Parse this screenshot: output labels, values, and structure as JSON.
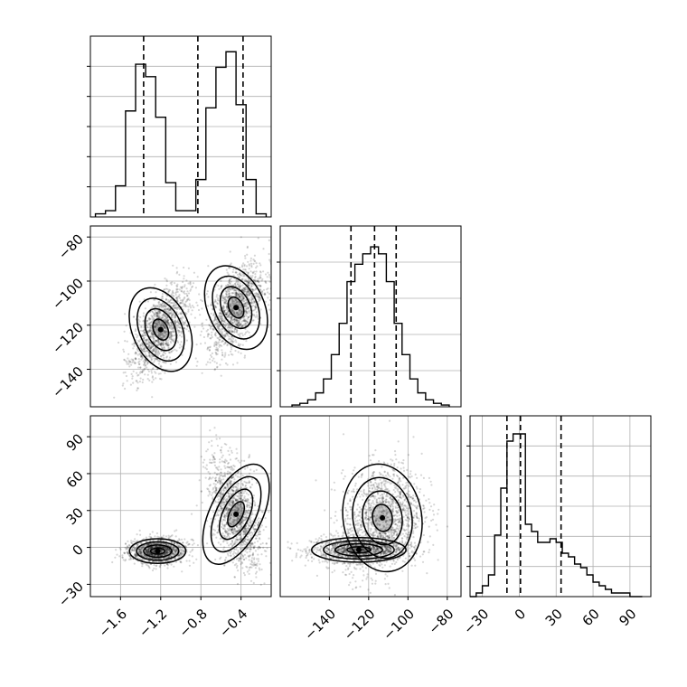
{
  "chart_data": {
    "type": "corner",
    "title": "",
    "parameters": [
      "",
      "",
      ""
    ],
    "panels": [
      {
        "kind": "hist1d",
        "row": 0,
        "col": 0,
        "xlim": [
          -1.9,
          -0.1
        ],
        "bins_x": [
          -1.8,
          -1.7,
          -1.6,
          -1.5,
          -1.4,
          -1.3,
          -1.2,
          -1.1,
          -1.0,
          -0.9,
          -0.8,
          -0.7,
          -0.6,
          -0.5,
          -0.4,
          -0.3,
          -0.2
        ],
        "counts": [
          1,
          2,
          10,
          34,
          49,
          45,
          32,
          11,
          2,
          2,
          12,
          35,
          48,
          53,
          36,
          12,
          1
        ],
        "ymax": 58,
        "quantiles": [
          -1.37,
          -0.83,
          -0.38
        ],
        "x_ticks": [],
        "y_tick_count": 5
      },
      {
        "kind": "scatter2d",
        "row": 1,
        "col": 0,
        "xlim": [
          -1.9,
          -0.1
        ],
        "ylim": [
          -157,
          -75
        ],
        "y_ticks": [
          -80,
          -100,
          -120,
          -140
        ],
        "clusters": [
          {
            "cx": -1.2,
            "cy": -122,
            "sx": 0.14,
            "sy": 10,
            "rho": 0.55
          },
          {
            "cx": -0.45,
            "cy": -112,
            "sx": 0.14,
            "sy": 10,
            "rho": 0.55
          }
        ]
      },
      {
        "kind": "hist1d",
        "row": 1,
        "col": 1,
        "xlim": [
          -165,
          -73
        ],
        "bins_x": [
          -157,
          -153,
          -149,
          -145,
          -141,
          -137,
          -133,
          -129,
          -125,
          -121,
          -117,
          -113,
          -109,
          -105,
          -101,
          -97,
          -93,
          -89,
          -85,
          -81
        ],
        "counts": [
          1,
          2,
          4,
          8,
          16,
          30,
          48,
          72,
          82,
          88,
          92,
          88,
          72,
          48,
          30,
          16,
          8,
          4,
          2,
          1
        ],
        "ymax": 104,
        "quantiles": [
          -129,
          -117,
          -106
        ],
        "y_tick_count": 4
      },
      {
        "kind": "scatter2d",
        "row": 2,
        "col": 0,
        "xlim": [
          -1.9,
          -0.1
        ],
        "ylim": [
          -40,
          107
        ],
        "x_ticks": [
          -1.6,
          -1.2,
          -0.8,
          -0.4
        ],
        "y_ticks": [
          90,
          60,
          30,
          0,
          -30
        ],
        "clusters": [
          {
            "cx": -1.23,
            "cy": -3,
            "sx": 0.14,
            "sy": 5,
            "rho": 0.0
          },
          {
            "cx": -0.45,
            "cy": 27,
            "sx": 0.13,
            "sy": 22,
            "rho": -0.45
          }
        ]
      },
      {
        "kind": "scatter2d",
        "row": 2,
        "col": 1,
        "xlim": [
          -165,
          -73
        ],
        "ylim": [
          -40,
          107
        ],
        "x_ticks": [
          -140,
          -120,
          -100,
          -80
        ],
        "clusters": [
          {
            "cx": -125,
            "cy": -2,
            "sx": 12,
            "sy": 5,
            "rho": 0.0
          },
          {
            "cx": -113,
            "cy": 24,
            "sx": 10,
            "sy": 22,
            "rho": 0.2
          }
        ]
      },
      {
        "kind": "hist1d",
        "row": 2,
        "col": 2,
        "xlim": [
          -40,
          107
        ],
        "bins_x": [
          -37.5,
          -32.5,
          -27.5,
          -22.5,
          -17.5,
          -12.5,
          -7.5,
          -2.5,
          2.5,
          7.5,
          12.5,
          17.5,
          22.5,
          27.5,
          32.5,
          37.5,
          42.5,
          47.5,
          52.5,
          57.5,
          62.5,
          67.5,
          72.5,
          77.5,
          82.5,
          87.5,
          92.5,
          97.5
        ],
        "counts": [
          0,
          1,
          3,
          6,
          17,
          30,
          43,
          45,
          45,
          20,
          18,
          15,
          15,
          16,
          15,
          12,
          11,
          9,
          8,
          6,
          4,
          3,
          2,
          1,
          1,
          1,
          0,
          0
        ],
        "ymax": 50,
        "quantiles": [
          -10,
          1,
          34
        ],
        "x_ticks": [
          -30,
          0,
          30,
          60,
          90
        ],
        "y_tick_count": 5
      }
    ],
    "x_tick_labels": {
      "col0": [
        "−1.6",
        "−1.2",
        "−0.8",
        "−0.4"
      ],
      "col1": [
        "−140",
        "−120",
        "−100",
        "−80"
      ],
      "col2": [
        "−30",
        "0",
        "30",
        "60",
        "90"
      ]
    },
    "y_tick_labels": {
      "row1": [
        "−80",
        "−100",
        "−120",
        "−140"
      ],
      "row2": [
        "90",
        "60",
        "30",
        "0",
        "−30"
      ]
    }
  }
}
